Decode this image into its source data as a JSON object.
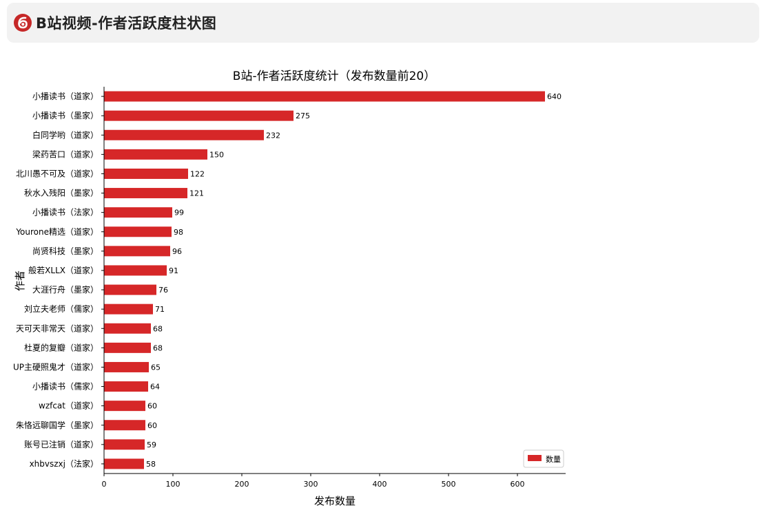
{
  "header": {
    "title": "B站视频-作者活跃度柱状图",
    "logo_icon": "bilibili-logo-icon",
    "logo_color": "#c62828"
  },
  "chart_data": {
    "type": "bar",
    "orientation": "horizontal",
    "title": "B站-作者活跃度统计（发布数量前20）",
    "xlabel": "发布数量",
    "ylabel": "作者",
    "xlim": [
      0,
      670
    ],
    "xticks": [
      0,
      100,
      200,
      300,
      400,
      500,
      600
    ],
    "bar_color": "#d62728",
    "grid": false,
    "legend": {
      "position": "bottom-right",
      "entries": [
        "数量"
      ]
    },
    "categories": [
      "小播读书（道家）",
      "小播读书（墨家）",
      "白同学哟（道家）",
      "梁药苦口（道家）",
      "北川愚不可及（道家）",
      "秋水入残阳（墨家）",
      "小播读书（法家）",
      "Yourone精选（道家）",
      "尚贤科技（墨家）",
      "般若XLLX（道家）",
      "大涯行舟（墨家）",
      "刘立夫老师（儒家）",
      "天可天非常天（道家）",
      "杜夏的复瓣（道家）",
      "UP主硬照鬼才（道家）",
      "小播读书（儒家）",
      "wzfcat（道家）",
      "朱恪远聊国学（墨家）",
      "账号已注销（道家）",
      "xhbvszxj（法家）"
    ],
    "series": [
      {
        "name": "数量",
        "values": [
          640,
          275,
          232,
          150,
          122,
          121,
          99,
          98,
          96,
          91,
          76,
          71,
          68,
          68,
          65,
          64,
          60,
          60,
          59,
          58
        ]
      }
    ]
  }
}
